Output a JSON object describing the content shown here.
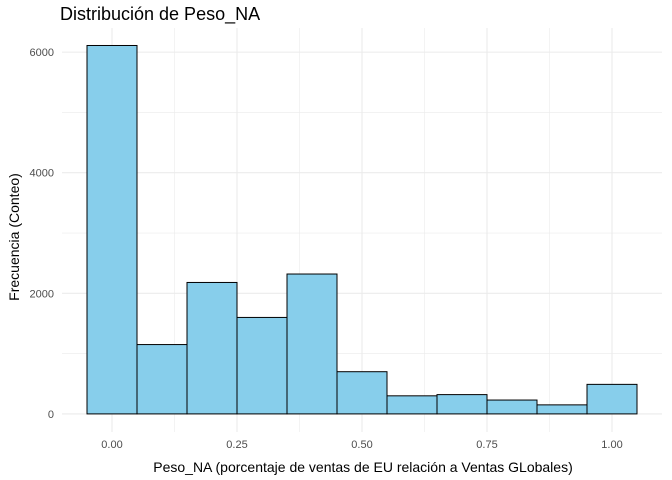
{
  "chart_data": {
    "type": "bar",
    "title": "Distribución de Peso_NA",
    "xlabel": "Peso_NA (porcentaje de ventas de EU relación a Ventas GLobales)",
    "ylabel": "Frecuencia (Conteo)",
    "bin_width": 0.1,
    "bins": [
      {
        "center": 0.0,
        "count": 6110
      },
      {
        "center": 0.1,
        "count": 1150
      },
      {
        "center": 0.2,
        "count": 2180
      },
      {
        "center": 0.3,
        "count": 1600
      },
      {
        "center": 0.4,
        "count": 2320
      },
      {
        "center": 0.5,
        "count": 700
      },
      {
        "center": 0.6,
        "count": 300
      },
      {
        "center": 0.7,
        "count": 320
      },
      {
        "center": 0.8,
        "count": 230
      },
      {
        "center": 0.9,
        "count": 150
      },
      {
        "center": 1.0,
        "count": 490
      }
    ],
    "xlim": [
      -0.1,
      1.1
    ],
    "ylim": [
      -300,
      6400
    ],
    "x_ticks": [
      0.0,
      0.25,
      0.5,
      0.75,
      1.0
    ],
    "x_tick_labels": [
      "0.00",
      "0.25",
      "0.50",
      "0.75",
      "1.00"
    ],
    "y_ticks": [
      0,
      2000,
      4000,
      6000
    ],
    "y_tick_labels": [
      "0",
      "2000",
      "4000",
      "6000"
    ],
    "bar_fill": "#87CEEB",
    "bar_stroke": "#000000",
    "grid": true,
    "grid_color": "#ebebeb"
  }
}
